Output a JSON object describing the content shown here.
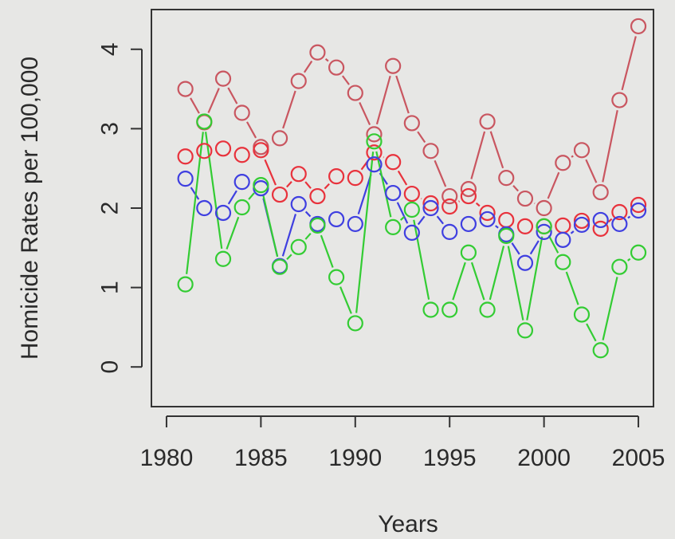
{
  "chart_data": {
    "type": "line",
    "title": "",
    "xlabel": "Years",
    "ylabel": "Homicide Rates per 100,000",
    "xlim": [
      1979.2,
      2005.8
    ],
    "ylim": [
      -0.5,
      4.5
    ],
    "xticks": [
      1980,
      1985,
      1990,
      1995,
      2000,
      2005
    ],
    "yticks": [
      0,
      1,
      2,
      3,
      4
    ],
    "grid": false,
    "legend": "none",
    "x": [
      1981,
      1982,
      1983,
      1984,
      1985,
      1986,
      1987,
      1988,
      1989,
      1990,
      1991,
      1992,
      1993,
      1994,
      1995,
      1996,
      1997,
      1998,
      1999,
      2000,
      2001,
      2002,
      2003,
      2004,
      2005
    ],
    "series": [
      {
        "color": "#c95660",
        "values": [
          3.5,
          3.08,
          3.63,
          3.2,
          2.77,
          2.88,
          3.6,
          3.96,
          3.77,
          3.45,
          2.93,
          3.79,
          3.07,
          2.72,
          2.15,
          2.24,
          3.09,
          2.38,
          2.12,
          2.0,
          2.57,
          2.73,
          2.2,
          3.36,
          4.29
        ]
      },
      {
        "color": "#e8323c",
        "values": [
          2.65,
          2.72,
          2.75,
          2.67,
          2.73,
          2.17,
          2.43,
          2.15,
          2.4,
          2.38,
          2.7,
          2.58,
          2.18,
          2.06,
          2.02,
          2.15,
          1.94,
          1.85,
          1.77,
          1.77,
          1.78,
          1.84,
          1.74,
          1.95,
          2.04
        ]
      },
      {
        "color": "#3f3fe0",
        "values": [
          2.37,
          2.0,
          1.94,
          2.33,
          2.25,
          1.27,
          2.05,
          1.8,
          1.86,
          1.8,
          2.55,
          2.19,
          1.69,
          2.0,
          1.7,
          1.8,
          1.86,
          1.67,
          1.31,
          1.7,
          1.6,
          1.79,
          1.85,
          1.8,
          1.97
        ]
      },
      {
        "color": "#33cc33",
        "values": [
          1.04,
          3.09,
          1.36,
          2.01,
          2.29,
          1.26,
          1.51,
          1.78,
          1.13,
          0.55,
          2.84,
          1.76,
          1.98,
          0.72,
          0.72,
          1.44,
          0.72,
          1.65,
          0.46,
          1.77,
          1.32,
          0.66,
          0.21,
          1.26,
          1.44
        ]
      }
    ]
  }
}
